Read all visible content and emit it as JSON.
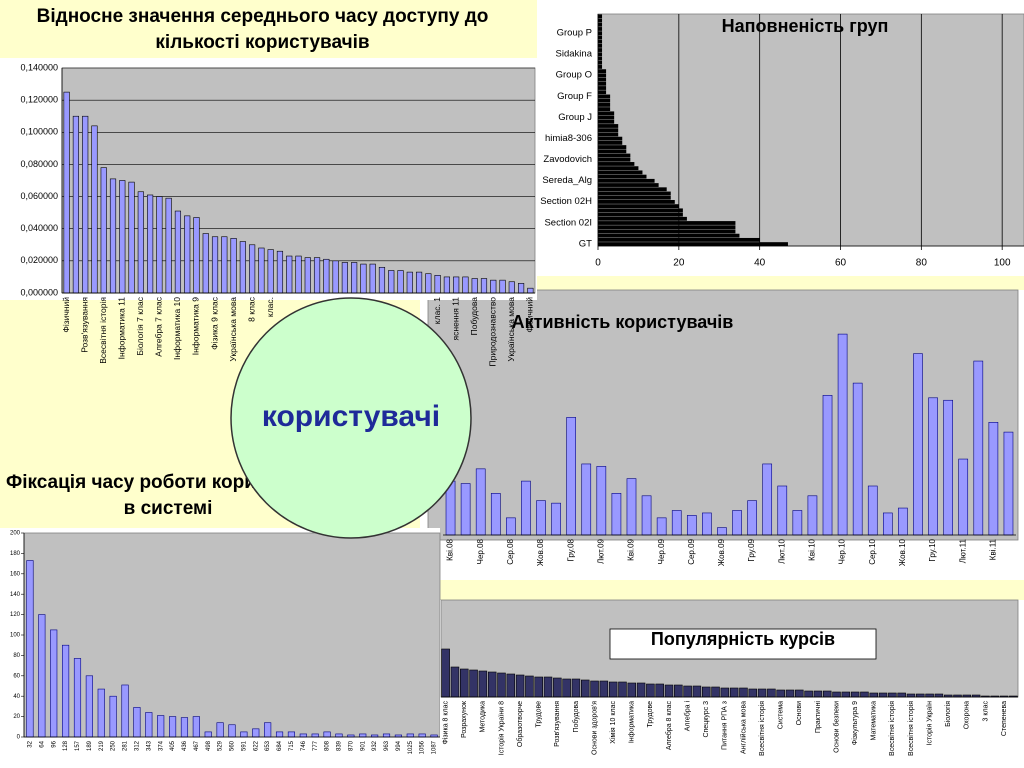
{
  "chart_data": [
    {
      "type": "bar",
      "title": "Відносне значення середнього часу доступу до кількості користувачів",
      "categories": [
        "Фізичний",
        null,
        "Розв'язування",
        null,
        "Всесвітня історія",
        null,
        "Інформатика 11",
        null,
        "Біологія 7 клас",
        null,
        "Алгебра 7 клас",
        null,
        "Інформатика 10",
        null,
        "Інформатика  9",
        null,
        "Фізика 9 клас",
        null,
        "Українська мова",
        null,
        "8 клас",
        null,
        "клас.",
        null,
        null,
        null,
        null,
        null,
        null,
        null,
        null,
        null,
        null,
        null,
        null,
        null,
        null,
        null,
        null,
        null,
        "клас. 1",
        null,
        "яснення 11",
        null,
        "Побудова",
        null,
        "Природознавство",
        null,
        "Українська мова",
        null,
        "Фізичний"
      ],
      "values": [
        0.125,
        0.11,
        0.11,
        0.104,
        0.078,
        0.071,
        0.07,
        0.069,
        0.063,
        0.061,
        0.06,
        0.059,
        0.051,
        0.048,
        0.047,
        0.037,
        0.035,
        0.035,
        0.034,
        0.032,
        0.03,
        0.028,
        0.027,
        0.026,
        0.023,
        0.023,
        0.022,
        0.022,
        0.021,
        0.02,
        0.019,
        0.019,
        0.018,
        0.018,
        0.016,
        0.014,
        0.014,
        0.013,
        0.013,
        0.012,
        0.011,
        0.01,
        0.01,
        0.01,
        0.009,
        0.009,
        0.008,
        0.008,
        0.007,
        0.006,
        0.003
      ],
      "color": "#9999ff",
      "ylim": [
        0,
        0.14
      ],
      "yticks": [
        {
          "value": 0,
          "label": "0,000000"
        },
        {
          "value": 0.02,
          "label": "0,020000"
        },
        {
          "value": 0.04,
          "label": "0,040000"
        },
        {
          "value": 0.06,
          "label": "0,060000"
        },
        {
          "value": 0.08,
          "label": "0,080000"
        },
        {
          "value": 0.1,
          "label": "0,100000"
        },
        {
          "value": 0.12,
          "label": "0,120000"
        },
        {
          "value": 0.14,
          "label": "0,140000"
        }
      ],
      "grid": true
    },
    {
      "type": "barh",
      "title": "Наповненість груп",
      "categories": [
        "GT",
        null,
        null,
        null,
        null,
        "Section 02I",
        null,
        null,
        null,
        null,
        "Section 02H",
        null,
        null,
        null,
        null,
        "Sereda_Alg",
        null,
        null,
        null,
        null,
        "Zavodovich",
        null,
        null,
        null,
        null,
        "himia8-306",
        null,
        null,
        null,
        null,
        "Group J",
        null,
        null,
        null,
        null,
        "Group F",
        null,
        null,
        null,
        null,
        "Group O",
        null,
        null,
        null,
        null,
        "Sidakina",
        null,
        null,
        null,
        null,
        "Group P",
        null,
        null,
        null,
        null
      ],
      "values": [
        47,
        40,
        35,
        34,
        34,
        34,
        22,
        21,
        21,
        20,
        19,
        18,
        18,
        17,
        15,
        14,
        12,
        11,
        10,
        9,
        8,
        8,
        7,
        7,
        6,
        6,
        5,
        5,
        5,
        4,
        4,
        4,
        3,
        3,
        3,
        3,
        2,
        2,
        2,
        2,
        2,
        2,
        1,
        1,
        1,
        1,
        1,
        1,
        1,
        1,
        1,
        1,
        1,
        1,
        1
      ],
      "color": "#000000",
      "xlim": [
        0,
        105.4
      ],
      "xticks": [
        0,
        20,
        40,
        60,
        80,
        100
      ],
      "grid": true
    },
    {
      "type": "bar",
      "title": "Активність користувачів",
      "categories": [
        "Кві.08",
        null,
        "Чер.08",
        null,
        "Сер.08",
        null,
        "Жов.08",
        null,
        "Гру.08",
        null,
        "Лют.09",
        null,
        "Кві.09",
        null,
        "Чер.09",
        null,
        "Сер.09",
        null,
        "Жов.09",
        null,
        "Гру.09",
        null,
        "Лют.10",
        null,
        "Кві.10",
        null,
        "Чер.10",
        null,
        "Сер.10",
        null,
        "Жов.10",
        null,
        "Гру.10",
        null,
        "Лют.11",
        null,
        "Кві.11",
        null
      ],
      "values": [
        22,
        21,
        27,
        17,
        7,
        22,
        14,
        13,
        48,
        29,
        28,
        17,
        23,
        16,
        7,
        10,
        8,
        9,
        3,
        10,
        14,
        29,
        20,
        10,
        16,
        57,
        82,
        62,
        20,
        9,
        11,
        74,
        56,
        55,
        31,
        71,
        46,
        42
      ],
      "color": "#9999ff",
      "ylim": [
        0,
        100
      ]
    },
    {
      "type": "bar",
      "title": "Фіксація часу роботи користувача в системі",
      "categories": [
        "32",
        "64",
        "96",
        "128",
        "157",
        "189",
        "219",
        "250",
        "281",
        "312",
        "343",
        "374",
        "405",
        "436",
        "467",
        "498",
        "529",
        "560",
        "591",
        "622",
        "653",
        "684",
        "715",
        "746",
        "777",
        "808",
        "839",
        "870",
        "901",
        "932",
        "963",
        "994",
        "1025",
        "1056",
        "1087"
      ],
      "values": [
        173,
        120,
        105,
        90,
        77,
        60,
        47,
        40,
        51,
        29,
        24,
        21,
        20,
        19,
        20,
        5,
        14,
        12,
        5,
        8,
        14,
        5,
        5,
        3,
        3,
        5,
        3,
        2,
        3,
        2,
        3,
        2,
        3,
        3,
        2
      ],
      "color": "#9999ff",
      "ylim": [
        0,
        200
      ],
      "yticks": [
        0,
        20,
        40,
        60,
        80,
        100,
        120,
        140,
        160,
        180,
        200
      ]
    },
    {
      "type": "bar",
      "title": "Популярність курсів",
      "categories": [
        "Фізика 8 клас",
        null,
        "Розрахунок",
        null,
        "Методика",
        null,
        "Історія України 8",
        null,
        "Образотворче",
        null,
        "Трудове",
        null,
        "Розв'язування",
        null,
        "Побудова",
        null,
        "Основи здоров'я",
        null,
        "Хімія 10 клас",
        null,
        "Інформатика",
        null,
        "Трудове",
        null,
        "Алгебра 8 клас",
        null,
        "Алгебра і",
        null,
        "Спецкурс 3",
        null,
        "Питання РПА з",
        null,
        "Англійська мова",
        null,
        "Всесвітня історія",
        null,
        "Система",
        null,
        "Основи",
        null,
        "Практичні",
        null,
        "Основи безпеки",
        null,
        "Фізкультура 9",
        null,
        "Математика",
        null,
        "Всесвітня історія",
        null,
        "Всесвітня історія",
        null,
        "Історія Україн",
        null,
        "Біологія",
        null,
        "Охорона",
        null,
        "3 клас",
        null,
        "Степенева",
        null
      ],
      "values": [
        48,
        30,
        28,
        27,
        26,
        25,
        24,
        23,
        22,
        21,
        20,
        20,
        19,
        18,
        18,
        17,
        16,
        16,
        15,
        15,
        14,
        14,
        13,
        13,
        12,
        12,
        11,
        11,
        10,
        10,
        9,
        9,
        9,
        8,
        8,
        8,
        7,
        7,
        7,
        6,
        6,
        6,
        5,
        5,
        5,
        5,
        4,
        4,
        4,
        4,
        3,
        3,
        3,
        3,
        2,
        2,
        2,
        2,
        1,
        1,
        1,
        1
      ],
      "color": "#333366",
      "ylim": [
        0,
        50
      ]
    }
  ],
  "label": "користувачі"
}
